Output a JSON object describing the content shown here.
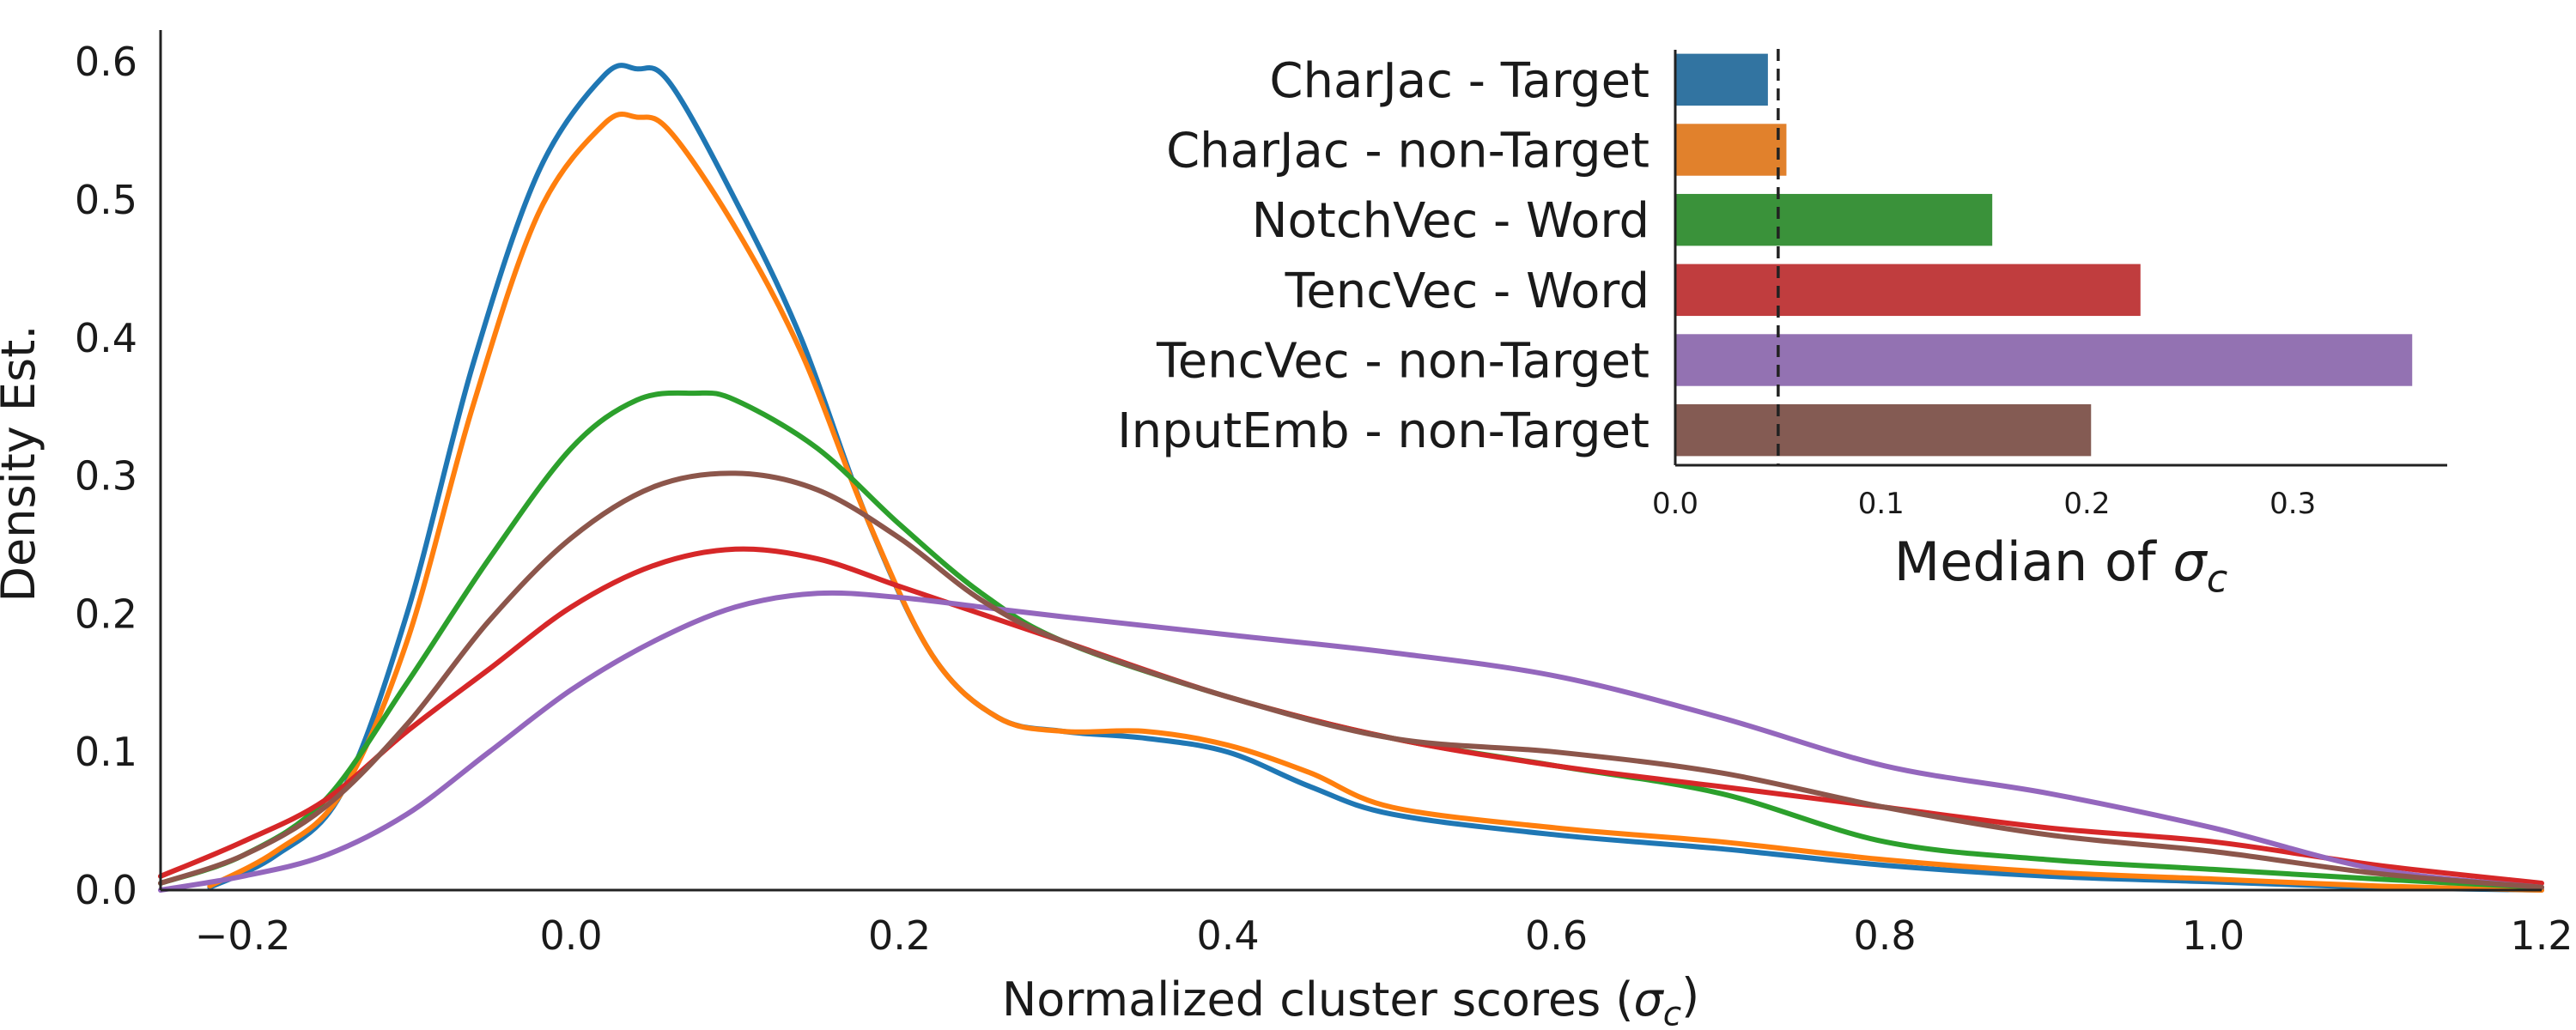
{
  "chart_data": [
    {
      "type": "line",
      "title": "",
      "xlabel": "Normalized cluster scores (σc)",
      "ylabel": "Density Est.",
      "xlim": [
        -0.25,
        1.2
      ],
      "ylim": [
        0,
        0.62
      ],
      "xticks": [
        "−0.2",
        "0.0",
        "0.2",
        "0.4",
        "0.6",
        "0.8",
        "1.0",
        "1.2"
      ],
      "yticks": [
        "0.0",
        "0.1",
        "0.2",
        "0.3",
        "0.4",
        "0.5",
        "0.6"
      ],
      "grid": false,
      "series": [
        {
          "color": "#1f77b4",
          "x": [
            -0.22,
            -0.18,
            -0.14,
            -0.1,
            -0.06,
            -0.02,
            0.02,
            0.04,
            0.06,
            0.1,
            0.14,
            0.18,
            0.22,
            0.26,
            0.3,
            0.35,
            0.4,
            0.45,
            0.5,
            0.6,
            0.7,
            0.8,
            0.9,
            1.0,
            1.1,
            1.2
          ],
          "y": [
            0.002,
            0.025,
            0.07,
            0.2,
            0.38,
            0.52,
            0.59,
            0.595,
            0.585,
            0.5,
            0.4,
            0.27,
            0.17,
            0.125,
            0.115,
            0.11,
            0.1,
            0.075,
            0.055,
            0.04,
            0.03,
            0.018,
            0.01,
            0.006,
            0.002,
            0.0
          ]
        },
        {
          "color": "#ff7f0e",
          "x": [
            -0.22,
            -0.18,
            -0.14,
            -0.1,
            -0.06,
            -0.02,
            0.02,
            0.04,
            0.06,
            0.1,
            0.14,
            0.18,
            0.22,
            0.26,
            0.3,
            0.35,
            0.4,
            0.45,
            0.5,
            0.6,
            0.7,
            0.8,
            0.9,
            1.0,
            1.1,
            1.2
          ],
          "y": [
            0.003,
            0.028,
            0.07,
            0.18,
            0.35,
            0.49,
            0.555,
            0.56,
            0.55,
            0.48,
            0.39,
            0.27,
            0.17,
            0.125,
            0.115,
            0.115,
            0.105,
            0.085,
            0.06,
            0.045,
            0.035,
            0.022,
            0.013,
            0.008,
            0.003,
            0.0
          ]
        },
        {
          "color": "#2ca02c",
          "x": [
            -0.25,
            -0.2,
            -0.15,
            -0.1,
            -0.05,
            0.0,
            0.04,
            0.075,
            0.1,
            0.15,
            0.2,
            0.25,
            0.3,
            0.4,
            0.5,
            0.6,
            0.7,
            0.8,
            0.9,
            1.0,
            1.1,
            1.2
          ],
          "y": [
            0.005,
            0.025,
            0.065,
            0.15,
            0.24,
            0.32,
            0.355,
            0.36,
            0.355,
            0.32,
            0.265,
            0.215,
            0.18,
            0.14,
            0.11,
            0.09,
            0.07,
            0.035,
            0.022,
            0.015,
            0.008,
            0.002
          ]
        },
        {
          "color": "#d62728",
          "x": [
            -0.25,
            -0.2,
            -0.15,
            -0.1,
            -0.05,
            0.0,
            0.05,
            0.1,
            0.15,
            0.2,
            0.25,
            0.3,
            0.4,
            0.5,
            0.6,
            0.7,
            0.8,
            0.9,
            1.0,
            1.1,
            1.2
          ],
          "y": [
            0.01,
            0.035,
            0.065,
            0.115,
            0.16,
            0.205,
            0.235,
            0.247,
            0.24,
            0.22,
            0.2,
            0.18,
            0.14,
            0.11,
            0.09,
            0.075,
            0.06,
            0.045,
            0.035,
            0.018,
            0.005
          ]
        },
        {
          "color": "#9467bd",
          "x": [
            -0.25,
            -0.2,
            -0.15,
            -0.1,
            -0.05,
            0.0,
            0.05,
            0.1,
            0.15,
            0.2,
            0.25,
            0.3,
            0.4,
            0.5,
            0.6,
            0.7,
            0.8,
            0.9,
            1.0,
            1.1,
            1.2
          ],
          "y": [
            0.0,
            0.01,
            0.025,
            0.055,
            0.1,
            0.145,
            0.18,
            0.205,
            0.215,
            0.212,
            0.205,
            0.198,
            0.185,
            0.172,
            0.155,
            0.125,
            0.09,
            0.07,
            0.045,
            0.015,
            0.002
          ]
        },
        {
          "color": "#8c564b",
          "x": [
            -0.25,
            -0.2,
            -0.15,
            -0.1,
            -0.05,
            0.0,
            0.05,
            0.1,
            0.15,
            0.2,
            0.25,
            0.3,
            0.4,
            0.5,
            0.6,
            0.7,
            0.8,
            0.9,
            1.0,
            1.1,
            1.2
          ],
          "y": [
            0.005,
            0.025,
            0.06,
            0.12,
            0.195,
            0.255,
            0.292,
            0.302,
            0.29,
            0.255,
            0.21,
            0.18,
            0.14,
            0.11,
            0.1,
            0.085,
            0.06,
            0.04,
            0.028,
            0.012,
            0.002
          ]
        }
      ]
    },
    {
      "type": "bar",
      "orientation": "horizontal",
      "title": "",
      "xlabel": "Median of σc",
      "ylabel": "",
      "xlim": [
        0,
        0.375
      ],
      "xticks": [
        "0.0",
        "0.1",
        "0.2",
        "0.3"
      ],
      "categories": [
        "CharJac - Target",
        "CharJac - non-Target",
        "NotchVec - Word",
        "TencVec - Word",
        "TencVec - non-Target",
        "InputEmb - non-Target"
      ],
      "values": [
        0.045,
        0.054,
        0.154,
        0.226,
        0.358,
        0.202
      ],
      "colors": [
        "#3274a1",
        "#e1812c",
        "#3a923a",
        "#c03d3e",
        "#9372b2",
        "#845b53"
      ],
      "reference_line": {
        "x": 0.05,
        "style": "dashed"
      }
    }
  ]
}
